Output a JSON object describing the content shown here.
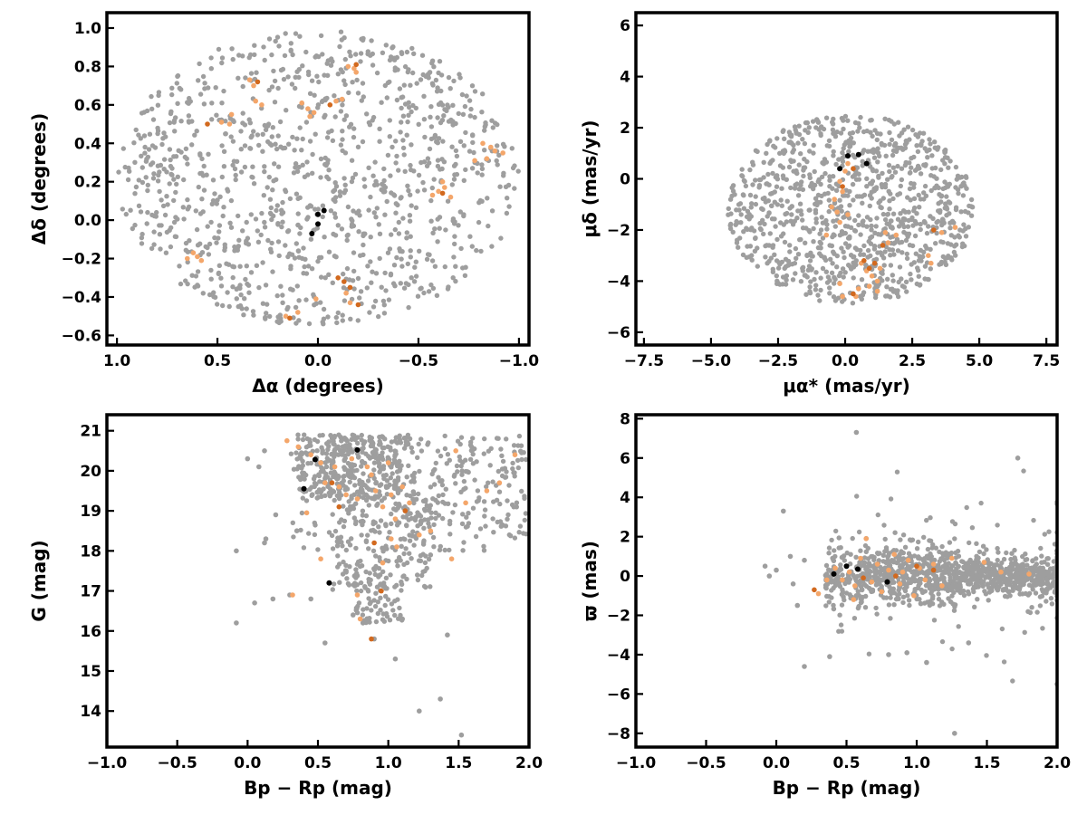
{
  "colors": {
    "field": "#9e9e9e",
    "member_light": "#f4a66a",
    "member_dark": "#d2691e",
    "core": "#000000"
  },
  "chart_data": [
    {
      "type": "scatter",
      "xlabel": "Δα (degrees)",
      "ylabel": "Δδ (degrees)",
      "xlim": [
        1.05,
        -1.05
      ],
      "ylim": [
        -0.65,
        1.08
      ],
      "xticks": [
        1.0,
        0.5,
        0.0,
        -0.5,
        -1.0
      ],
      "xtick_labels": [
        "1.0",
        "0.5",
        "0.0",
        "−0.5",
        "−1.0"
      ],
      "yticks": [
        -0.6,
        -0.4,
        -0.2,
        0.0,
        0.2,
        0.4,
        0.6,
        0.8,
        1.0
      ],
      "ytick_labels": [
        "−0.6",
        "−0.4",
        "−0.2",
        "0.0",
        "0.2",
        "0.4",
        "0.6",
        "0.8",
        "1.0"
      ],
      "field_region": {
        "shape": "ellipse",
        "cx": 0.0,
        "cy": 0.22,
        "rx": 1.0,
        "ry": 0.77,
        "count": 1100
      },
      "series": [
        {
          "role": "members",
          "color": "member_light",
          "points": [
            [
              0.48,
              0.51
            ],
            [
              0.44,
              0.5
            ],
            [
              0.43,
              0.55
            ],
            [
              0.34,
              0.73
            ],
            [
              0.32,
              0.7
            ],
            [
              0.31,
              0.62
            ],
            [
              0.28,
              0.6
            ],
            [
              0.08,
              0.61
            ],
            [
              0.05,
              0.58
            ],
            [
              0.04,
              0.54
            ],
            [
              0.02,
              0.56
            ],
            [
              -0.09,
              0.62
            ],
            [
              -0.12,
              0.63
            ],
            [
              -0.15,
              0.8
            ],
            [
              -0.18,
              0.79
            ],
            [
              -0.19,
              0.77
            ],
            [
              -0.82,
              0.4
            ],
            [
              -0.86,
              0.38
            ],
            [
              -0.88,
              0.36
            ],
            [
              -0.92,
              0.35
            ],
            [
              -0.84,
              0.32
            ],
            [
              -0.78,
              0.31
            ],
            [
              -0.57,
              0.13
            ],
            [
              -0.6,
              0.15
            ],
            [
              -0.63,
              0.17
            ],
            [
              -0.66,
              0.12
            ],
            [
              -0.62,
              0.2
            ],
            [
              0.62,
              -0.17
            ],
            [
              0.6,
              -0.19
            ],
            [
              0.58,
              -0.21
            ],
            [
              0.65,
              -0.2
            ],
            [
              0.16,
              -0.5
            ],
            [
              0.1,
              -0.48
            ],
            [
              0.01,
              -0.41
            ],
            [
              -0.14,
              -0.38
            ],
            [
              -0.16,
              -0.43
            ]
          ]
        },
        {
          "role": "members",
          "color": "member_dark",
          "points": [
            [
              0.55,
              0.5
            ],
            [
              0.3,
              0.72
            ],
            [
              -0.19,
              0.81
            ],
            [
              -0.62,
              0.14
            ],
            [
              0.14,
              -0.51
            ],
            [
              -0.1,
              -0.3
            ],
            [
              -0.13,
              -0.32
            ],
            [
              -0.16,
              -0.35
            ],
            [
              -0.2,
              -0.44
            ],
            [
              -0.06,
              0.6
            ]
          ]
        },
        {
          "role": "core",
          "color": "core",
          "points": [
            [
              0.0,
              0.03
            ],
            [
              -0.03,
              0.05
            ],
            [
              0.0,
              -0.02
            ],
            [
              0.03,
              -0.07
            ]
          ]
        }
      ]
    },
    {
      "type": "scatter",
      "xlabel": "μα* (mas/yr)",
      "ylabel": "μδ (mas/yr)",
      "xlim": [
        -7.8,
        7.9
      ],
      "ylim": [
        -6.5,
        6.5
      ],
      "xticks": [
        -7.5,
        -5.0,
        -2.5,
        0.0,
        2.5,
        5.0,
        7.5
      ],
      "xtick_labels": [
        "−7.5",
        "−5.0",
        "−2.5",
        "0.0",
        "2.5",
        "5.0",
        "7.5"
      ],
      "yticks": [
        -6,
        -4,
        -2,
        0,
        2,
        4,
        6
      ],
      "ytick_labels": [
        "−6",
        "−4",
        "−2",
        "0",
        "2",
        "4",
        "6"
      ],
      "field_region": {
        "shape": "ellipse",
        "cx": 0.2,
        "cy": -1.2,
        "rx": 4.6,
        "ry": 3.7,
        "count": 1000
      },
      "series": [
        {
          "role": "members",
          "color": "member_light",
          "points": [
            [
              0.1,
              0.6
            ],
            [
              0.0,
              0.3
            ],
            [
              -0.2,
              -0.1
            ],
            [
              -0.1,
              -0.5
            ],
            [
              -0.4,
              -0.8
            ],
            [
              -0.5,
              -1.1
            ],
            [
              -0.3,
              -1.3
            ],
            [
              -0.2,
              -1.7
            ],
            [
              0.1,
              -1.4
            ],
            [
              -0.7,
              -2.2
            ],
            [
              1.5,
              -2.1
            ],
            [
              1.6,
              -2.5
            ],
            [
              1.9,
              -2.2
            ],
            [
              3.1,
              -3.0
            ],
            [
              3.2,
              -3.3
            ],
            [
              3.6,
              -2.1
            ],
            [
              4.1,
              -1.9
            ],
            [
              0.6,
              -3.3
            ],
            [
              0.8,
              -3.6
            ],
            [
              1.0,
              -3.8
            ],
            [
              1.3,
              -3.5
            ],
            [
              1.2,
              -4.0
            ],
            [
              0.5,
              -4.3
            ],
            [
              -0.2,
              -4.1
            ],
            [
              -0.1,
              -4.6
            ],
            [
              0.4,
              -4.6
            ],
            [
              1.2,
              -4.4
            ],
            [
              0.9,
              -4.2
            ]
          ]
        },
        {
          "role": "members",
          "color": "member_dark",
          "points": [
            [
              0.3,
              0.4
            ],
            [
              -0.1,
              -0.3
            ],
            [
              0.7,
              -3.2
            ],
            [
              0.9,
              -3.5
            ],
            [
              1.1,
              -3.3
            ],
            [
              3.3,
              -2.0
            ],
            [
              0.3,
              -4.5
            ],
            [
              1.4,
              -2.6
            ]
          ]
        },
        {
          "role": "core",
          "color": "core",
          "points": [
            [
              0.1,
              0.9
            ],
            [
              0.5,
              0.95
            ],
            [
              0.8,
              0.6
            ],
            [
              -0.2,
              0.4
            ]
          ]
        }
      ]
    },
    {
      "type": "scatter",
      "xlabel": "Bp − Rp (mag)",
      "ylabel": "G (mag)",
      "xlim": [
        -1.0,
        2.0
      ],
      "ylim": [
        13.1,
        21.4
      ],
      "xticks": [
        -1.0,
        -0.5,
        0.0,
        0.5,
        1.0,
        1.5,
        2.0
      ],
      "xtick_labels": [
        "−1.0",
        "−0.5",
        "0.0",
        "0.5",
        "1.0",
        "1.5",
        "2.0"
      ],
      "yticks": [
        14,
        15,
        16,
        17,
        18,
        19,
        20,
        21
      ],
      "ytick_labels": [
        "14",
        "15",
        "16",
        "17",
        "18",
        "19",
        "20",
        "21"
      ],
      "field_region": {
        "shape": "cmd",
        "count": 900
      },
      "series": [
        {
          "role": "field",
          "color": "field",
          "points": [
            [
              -0.08,
              18.0
            ],
            [
              -0.08,
              16.2
            ],
            [
              0.05,
              16.7
            ],
            [
              0.12,
              18.2
            ],
            [
              0.13,
              18.3
            ],
            [
              0.18,
              16.8
            ],
            [
              0.2,
              18.9
            ],
            [
              0.3,
              16.9
            ],
            [
              0.35,
              18.5
            ],
            [
              0.45,
              16.8
            ],
            [
              0.55,
              15.7
            ],
            [
              1.05,
              15.3
            ],
            [
              1.22,
              14.0
            ],
            [
              1.37,
              14.3
            ],
            [
              1.52,
              13.4
            ],
            [
              1.42,
              15.9
            ],
            [
              0.75,
              16.4
            ],
            [
              0.82,
              16.2
            ],
            [
              0.9,
              15.8
            ],
            [
              1.1,
              16.3
            ],
            [
              0.7,
              17.5
            ],
            [
              1.3,
              17.9
            ],
            [
              0.0,
              20.3
            ],
            [
              0.08,
              20.1
            ],
            [
              0.12,
              20.5
            ]
          ]
        },
        {
          "role": "members",
          "color": "member_light",
          "points": [
            [
              0.28,
              20.75
            ],
            [
              0.36,
              20.6
            ],
            [
              0.45,
              20.4
            ],
            [
              0.52,
              20.2
            ],
            [
              0.55,
              19.7
            ],
            [
              0.62,
              20.1
            ],
            [
              0.65,
              19.6
            ],
            [
              0.7,
              19.4
            ],
            [
              0.74,
              20.3
            ],
            [
              0.78,
              19.3
            ],
            [
              0.85,
              20.1
            ],
            [
              0.88,
              19.9
            ],
            [
              0.91,
              19.5
            ],
            [
              0.96,
              19.1
            ],
            [
              1.0,
              20.2
            ],
            [
              1.02,
              19.4
            ],
            [
              1.05,
              18.8
            ],
            [
              1.1,
              19.6
            ],
            [
              1.15,
              19.2
            ],
            [
              1.22,
              18.4
            ],
            [
              1.3,
              18.5
            ],
            [
              1.48,
              20.5
            ],
            [
              1.55,
              19.2
            ],
            [
              1.7,
              19.5
            ],
            [
              1.79,
              19.7
            ],
            [
              1.9,
              20.4
            ],
            [
              0.42,
              18.95
            ],
            [
              0.52,
              17.8
            ],
            [
              0.78,
              16.9
            ],
            [
              0.8,
              16.3
            ],
            [
              0.96,
              17.7
            ],
            [
              1.02,
              18.3
            ],
            [
              1.06,
              18.1
            ],
            [
              0.32,
              16.9
            ],
            [
              1.45,
              17.8
            ]
          ]
        },
        {
          "role": "members",
          "color": "member_dark",
          "points": [
            [
              0.6,
              19.7
            ],
            [
              0.9,
              18.2
            ],
            [
              0.88,
              15.8
            ],
            [
              0.95,
              17.0
            ],
            [
              1.12,
              19.0
            ],
            [
              0.65,
              19.1
            ]
          ]
        },
        {
          "role": "core",
          "color": "core",
          "points": [
            [
              0.48,
              20.28
            ],
            [
              0.78,
              20.52
            ],
            [
              0.4,
              19.55
            ],
            [
              0.58,
              17.2
            ]
          ]
        }
      ]
    },
    {
      "type": "scatter",
      "xlabel": "Bp − Rp (mag)",
      "ylabel": "ϖ (mas)",
      "xlim": [
        -1.0,
        2.0
      ],
      "ylim": [
        -8.7,
        8.2
      ],
      "xticks": [
        -1.0,
        -0.5,
        0.0,
        0.5,
        1.0,
        1.5,
        2.0
      ],
      "xtick_labels": [
        "−1.0",
        "−0.5",
        "0.0",
        "0.5",
        "1.0",
        "1.5",
        "2.0"
      ],
      "yticks": [
        -8,
        -6,
        -4,
        -2,
        0,
        2,
        4,
        6,
        8
      ],
      "ytick_labels": [
        "−8",
        "−6",
        "−4",
        "−2",
        "0",
        "2",
        "4",
        "6",
        "8"
      ],
      "field_region": {
        "shape": "band",
        "count": 1100
      },
      "series": [
        {
          "role": "field",
          "color": "field",
          "points": [
            [
              0.57,
              7.3
            ],
            [
              1.72,
              6.0
            ],
            [
              1.27,
              -8.0
            ],
            [
              2.0,
              -5.5
            ],
            [
              0.2,
              -4.6
            ],
            [
              0.38,
              -4.1
            ],
            [
              1.07,
              -4.4
            ],
            [
              1.37,
              -3.4
            ],
            [
              0.8,
              -4.0
            ],
            [
              0.93,
              -3.9
            ],
            [
              0.0,
              0.3
            ],
            [
              0.05,
              3.3
            ],
            [
              0.1,
              1.0
            ],
            [
              0.12,
              -0.4
            ],
            [
              0.15,
              -1.5
            ],
            [
              0.2,
              0.8
            ],
            [
              -0.08,
              0.5
            ],
            [
              -0.05,
              0.0
            ]
          ]
        },
        {
          "role": "members",
          "color": "member_light",
          "points": [
            [
              0.42,
              0.4
            ],
            [
              0.47,
              -0.2
            ],
            [
              0.52,
              0.2
            ],
            [
              0.56,
              -0.5
            ],
            [
              0.6,
              0.9
            ],
            [
              0.64,
              1.9
            ],
            [
              0.68,
              -0.3
            ],
            [
              0.72,
              0.6
            ],
            [
              0.75,
              -0.8
            ],
            [
              0.8,
              0.3
            ],
            [
              0.84,
              1.1
            ],
            [
              0.88,
              -0.4
            ],
            [
              0.9,
              0.2
            ],
            [
              0.94,
              0.8
            ],
            [
              0.98,
              -1.0
            ],
            [
              1.02,
              0.4
            ],
            [
              1.06,
              -0.2
            ],
            [
              1.12,
              0.6
            ],
            [
              1.18,
              -0.5
            ],
            [
              1.25,
              0.9
            ],
            [
              1.48,
              0.7
            ],
            [
              1.6,
              0.2
            ],
            [
              1.8,
              0.1
            ],
            [
              0.36,
              -0.2
            ],
            [
              0.3,
              -0.9
            ],
            [
              0.55,
              -1.2
            ]
          ]
        },
        {
          "role": "members",
          "color": "member_dark",
          "points": [
            [
              0.62,
              -0.1
            ],
            [
              0.85,
              0.0
            ],
            [
              1.0,
              0.5
            ],
            [
              1.12,
              0.3
            ],
            [
              0.27,
              -0.7
            ]
          ]
        },
        {
          "role": "core",
          "color": "core",
          "points": [
            [
              0.41,
              0.1
            ],
            [
              0.5,
              0.5
            ],
            [
              0.58,
              0.35
            ],
            [
              0.79,
              -0.3
            ]
          ]
        }
      ]
    }
  ]
}
